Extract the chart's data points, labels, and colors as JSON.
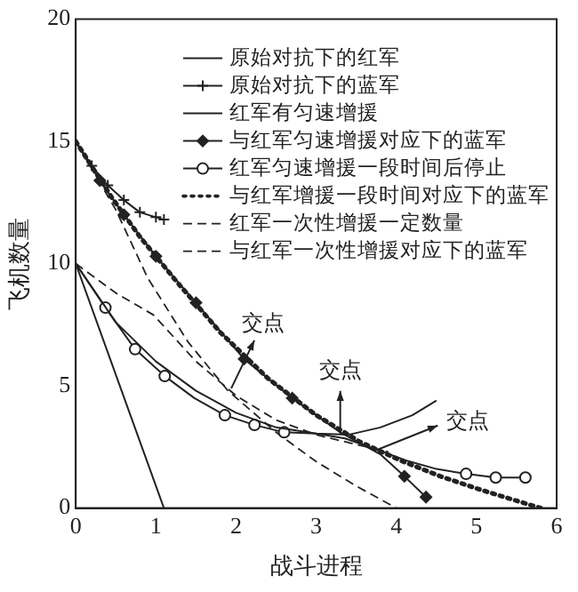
{
  "chart_data": {
    "type": "line",
    "xlabel": "战斗进程",
    "ylabel": "飞机数量",
    "xlim": [
      0,
      6
    ],
    "xticks": [
      0,
      1,
      2,
      3,
      4,
      5,
      6
    ],
    "ylim": [
      0,
      20
    ],
    "yticks": [
      0,
      5,
      10,
      15,
      20
    ],
    "grid": false,
    "legend": "top right",
    "series": [
      {
        "name": "原始对抗下的红军",
        "color": "#222222",
        "marker": "none",
        "line_style": "solid",
        "x": [
          0,
          1.1
        ],
        "values": [
          10,
          0
        ]
      },
      {
        "name": "原始对抗下的蓝军",
        "color": "#222222",
        "marker": "cross",
        "line_style": "solid",
        "x": [
          0,
          0.2,
          0.4,
          0.6,
          0.8,
          1.0,
          1.1
        ],
        "values": [
          15,
          14,
          13.2,
          12.6,
          12.1,
          11.9,
          11.8
        ]
      },
      {
        "name": "红军有匀速增援",
        "color": "#222222",
        "marker": "none",
        "line_style": "solid",
        "x": [
          0,
          0.5,
          1,
          1.5,
          2,
          2.5,
          3,
          3.4,
          3.8,
          4.2,
          4.5
        ],
        "values": [
          10,
          7.6,
          6.0,
          4.8,
          3.9,
          3.3,
          3.05,
          3.0,
          3.3,
          3.8,
          4.4
        ]
      },
      {
        "name": "与红军匀速增援对应下的蓝军",
        "color": "#222222",
        "marker": "diamond",
        "line_style": "solid",
        "x": [
          0,
          0.3,
          0.6,
          1,
          1.5,
          2.1,
          2.7,
          3.3,
          3.8,
          4.1,
          4.37
        ],
        "values": [
          15,
          13.4,
          12.0,
          10.3,
          8.4,
          6.1,
          4.5,
          3.1,
          2.2,
          1.3,
          0.45
        ]
      },
      {
        "name": "红军匀速增援一段时间后停止",
        "color": "#222222",
        "marker": "circle",
        "line_style": "solid",
        "x": [
          0,
          0.37,
          0.74,
          1.11,
          1.48,
          1.86,
          2.23,
          2.6,
          3.0,
          3.36,
          3.75,
          4.12,
          4.5,
          4.87,
          5.24,
          5.61
        ],
        "values": [
          10,
          8.2,
          6.5,
          5.4,
          4.5,
          3.8,
          3.4,
          3.1,
          3.05,
          2.85,
          2.4,
          1.95,
          1.6,
          1.4,
          1.25,
          1.25
        ]
      },
      {
        "name": "与红军增援一段时间对应下的蓝军",
        "color": "#222222",
        "marker": "none",
        "line_style": "dotted",
        "x": [
          0,
          0.45,
          0.8,
          1.25,
          1.8,
          2.4,
          3.0,
          3.55,
          4.05,
          4.55,
          5.05,
          5.5,
          5.8
        ],
        "values": [
          15,
          12.7,
          11.1,
          9.3,
          7.2,
          5.3,
          3.8,
          2.7,
          1.95,
          1.3,
          0.75,
          0.3,
          0
        ]
      },
      {
        "name": "红军一次性增援一定数量",
        "color": "#222222",
        "marker": "none",
        "line_style": "dashed",
        "x": [
          0,
          0.5,
          0.97,
          1.5,
          2,
          2.5,
          3,
          3.5,
          3.9
        ],
        "values": [
          10,
          8.8,
          7.9,
          6.0,
          4.6,
          3.6,
          3.0,
          2.6,
          2.3
        ]
      },
      {
        "name": "与红军一次性增援对应下的蓝军",
        "color": "#222222",
        "marker": "none",
        "line_style": "dashed",
        "x": [
          0,
          0.5,
          0.9,
          1.4,
          1.9,
          2.5,
          3,
          3.5,
          4
        ],
        "values": [
          15,
          12.2,
          9.4,
          6.8,
          4.8,
          3.1,
          1.9,
          0.9,
          0
        ]
      }
    ],
    "annotations": [
      {
        "text": "交点",
        "x": 1.94,
        "y": 4.9
      },
      {
        "text": "交点",
        "x": 3.3,
        "y": 3.05
      },
      {
        "text": "交点",
        "x": 3.74,
        "y": 2.36
      }
    ]
  }
}
